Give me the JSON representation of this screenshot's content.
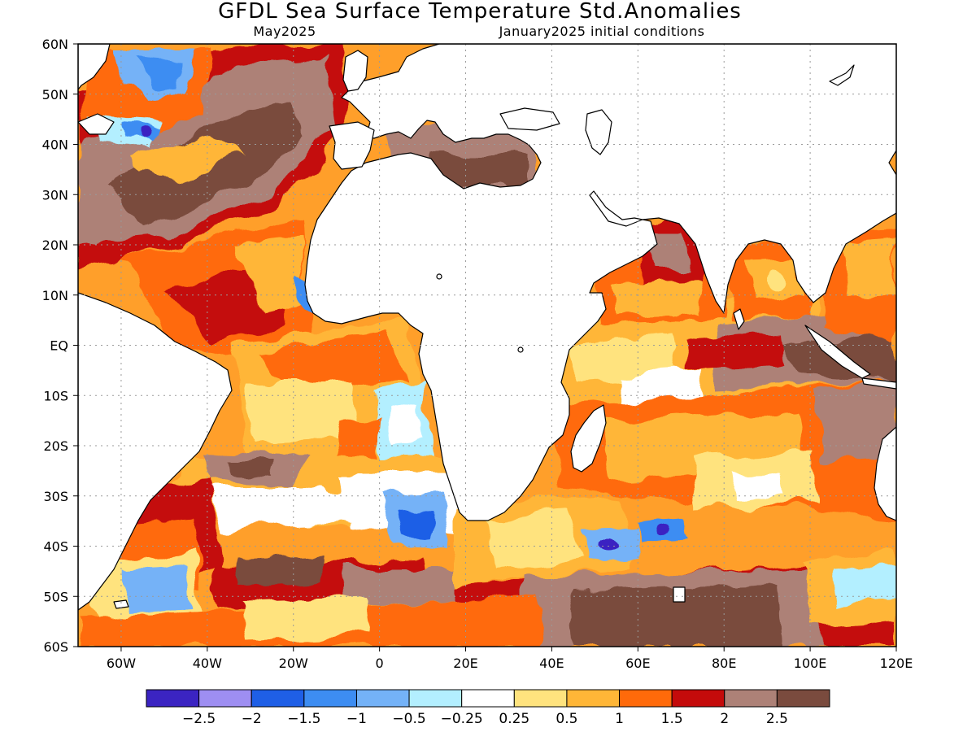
{
  "title": "GFDL Sea Surface Temperature Std.Anomalies",
  "subtitle_left": "May2025",
  "subtitle_right": "January2025 initial conditions",
  "map": {
    "lon_range": [
      -70,
      120
    ],
    "lat_range": [
      -60,
      60
    ],
    "lat_ticks": [
      {
        "v": 60,
        "label": "60N"
      },
      {
        "v": 50,
        "label": "50N"
      },
      {
        "v": 40,
        "label": "40N"
      },
      {
        "v": 30,
        "label": "30N"
      },
      {
        "v": 20,
        "label": "20N"
      },
      {
        "v": 10,
        "label": "10N"
      },
      {
        "v": 0,
        "label": "EQ"
      },
      {
        "v": -10,
        "label": "10S"
      },
      {
        "v": -20,
        "label": "20S"
      },
      {
        "v": -30,
        "label": "30S"
      },
      {
        "v": -40,
        "label": "40S"
      },
      {
        "v": -50,
        "label": "50S"
      },
      {
        "v": -60,
        "label": "60S"
      }
    ],
    "lon_ticks": [
      {
        "v": -60,
        "label": "60W"
      },
      {
        "v": -40,
        "label": "40W"
      },
      {
        "v": -20,
        "label": "20W"
      },
      {
        "v": 0,
        "label": "0"
      },
      {
        "v": 20,
        "label": "20E"
      },
      {
        "v": 40,
        "label": "40E"
      },
      {
        "v": 60,
        "label": "60E"
      },
      {
        "v": 80,
        "label": "80E"
      },
      {
        "v": 100,
        "label": "100E"
      },
      {
        "v": 120,
        "label": "120E"
      }
    ],
    "grid": true,
    "land_color": "#ffffff"
  },
  "colorbar": {
    "colors": [
      "#3b24c2",
      "#9e8ef2",
      "#1f5fe6",
      "#3d8df2",
      "#74b2f7",
      "#b3efff",
      "#ffffff",
      "#ffe37e",
      "#ffb637",
      "#ff6a0a",
      "#c40b0b",
      "#ad8177",
      "#7a4b3e"
    ],
    "labels": [
      "−2.5",
      "−2",
      "−1.5",
      "−1",
      "−0.5",
      "−0.25",
      "0.25",
      "0.5",
      "1",
      "1.5",
      "2",
      "2.5"
    ]
  }
}
